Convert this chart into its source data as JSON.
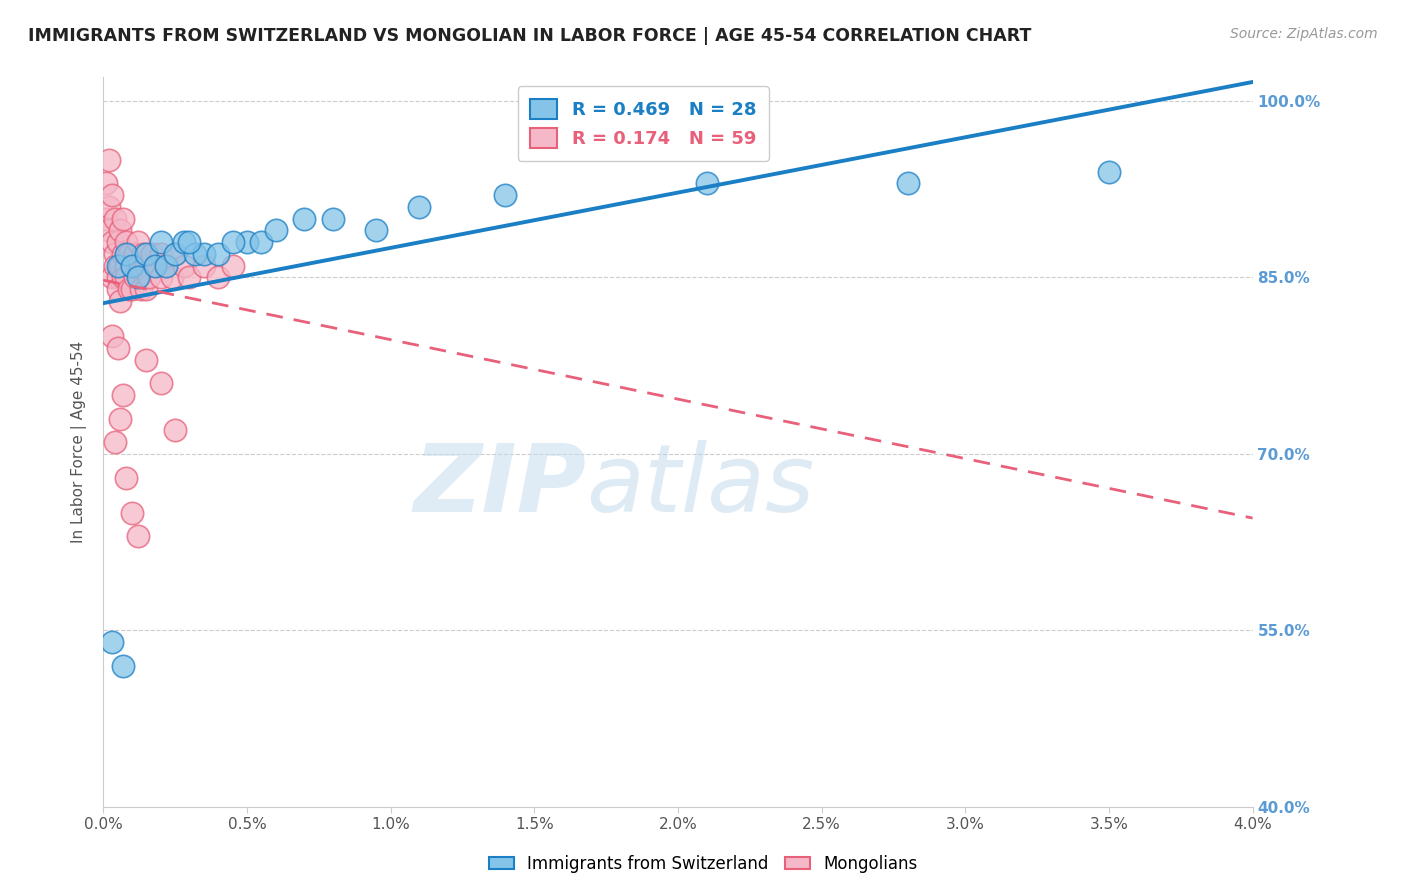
{
  "title": "IMMIGRANTS FROM SWITZERLAND VS MONGOLIAN IN LABOR FORCE | AGE 45-54 CORRELATION CHART",
  "source": "Source: ZipAtlas.com",
  "ylabel": "In Labor Force | Age 45-54",
  "legend_labels": [
    "Immigrants from Switzerland",
    "Mongolians"
  ],
  "r_swiss": 0.469,
  "n_swiss": 28,
  "r_mongolian": 0.174,
  "n_mongolian": 59,
  "xlim": [
    0.0,
    4.0
  ],
  "ylim": [
    40.0,
    102.0
  ],
  "xticks": [
    0.0,
    0.5,
    1.0,
    1.5,
    2.0,
    2.5,
    3.0,
    3.5,
    4.0
  ],
  "yticks": [
    40.0,
    55.0,
    70.0,
    85.0,
    100.0
  ],
  "color_swiss": "#85c4e8",
  "color_mongolian": "#f4b8c8",
  "color_trendline_swiss": "#1a7fc4",
  "color_trendline_mongolian": "#e8607a",
  "color_ytick": "#5b9bd5",
  "swiss_x": [
    0.05,
    0.08,
    0.1,
    0.12,
    0.15,
    0.18,
    0.2,
    0.22,
    0.25,
    0.28,
    0.32,
    0.35,
    0.4,
    0.5,
    0.55,
    0.6,
    0.7,
    0.8,
    1.1,
    1.4,
    2.1,
    2.8,
    3.5,
    0.3,
    0.45,
    0.95,
    0.03,
    0.07
  ],
  "swiss_y": [
    86,
    87,
    86,
    85,
    87,
    86,
    88,
    86,
    87,
    88,
    87,
    87,
    87,
    88,
    88,
    89,
    90,
    90,
    91,
    92,
    93,
    93,
    94,
    88,
    88,
    89,
    54,
    52
  ],
  "mongolian_x": [
    0.01,
    0.01,
    0.02,
    0.02,
    0.02,
    0.03,
    0.03,
    0.03,
    0.04,
    0.04,
    0.04,
    0.05,
    0.05,
    0.05,
    0.06,
    0.06,
    0.06,
    0.07,
    0.07,
    0.07,
    0.08,
    0.08,
    0.08,
    0.09,
    0.09,
    0.1,
    0.1,
    0.11,
    0.11,
    0.12,
    0.12,
    0.13,
    0.14,
    0.15,
    0.15,
    0.16,
    0.17,
    0.18,
    0.2,
    0.2,
    0.22,
    0.24,
    0.25,
    0.28,
    0.3,
    0.35,
    0.4,
    0.45,
    0.15,
    0.2,
    0.04,
    0.06,
    0.08,
    0.1,
    0.12,
    0.03,
    0.05,
    0.07,
    0.25
  ],
  "mongolian_y": [
    90,
    93,
    91,
    89,
    95,
    92,
    88,
    85,
    87,
    90,
    86,
    85,
    88,
    84,
    86,
    89,
    83,
    87,
    85,
    90,
    86,
    85,
    88,
    84,
    87,
    86,
    84,
    87,
    85,
    88,
    86,
    84,
    87,
    86,
    84,
    85,
    87,
    86,
    87,
    85,
    86,
    85,
    87,
    86,
    85,
    86,
    85,
    86,
    78,
    76,
    71,
    73,
    68,
    65,
    63,
    80,
    79,
    75,
    72
  ],
  "watermark_zip": "ZIP",
  "watermark_atlas": "atlas",
  "background_color": "#ffffff",
  "grid_color": "#cccccc"
}
